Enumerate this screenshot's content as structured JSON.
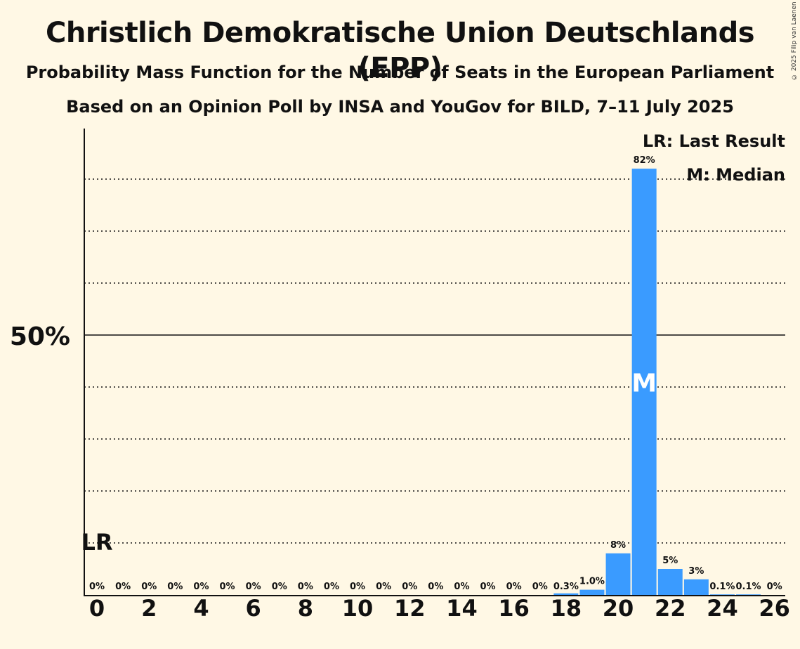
{
  "title": "Christlich Demokratische Union Deutschlands (EPP)",
  "subtitle1": "Probability Mass Function for the Number of Seats in the European Parliament",
  "subtitle2": "Based on an Opinion Poll by INSA and YouGov for BILD, 7–11 July 2025",
  "copyright": "© 2025 Filip van Laenen",
  "legend": {
    "last_result": "LR: Last Result",
    "median": "M: Median"
  },
  "colors": {
    "bar": "#3a9bff",
    "background": "#fff8e5",
    "text": "#111111"
  },
  "chart_data": {
    "type": "bar",
    "categories": [
      0,
      1,
      2,
      3,
      4,
      5,
      6,
      7,
      8,
      9,
      10,
      11,
      12,
      13,
      14,
      15,
      16,
      17,
      18,
      19,
      20,
      21,
      22,
      23,
      24,
      25,
      26
    ],
    "values": [
      0,
      0,
      0,
      0,
      0,
      0,
      0,
      0,
      0,
      0,
      0,
      0,
      0,
      0,
      0,
      0,
      0,
      0,
      0.3,
      1.0,
      8,
      82,
      5,
      3,
      0.1,
      0.1,
      0
    ],
    "value_labels": [
      "0%",
      "0%",
      "0%",
      "0%",
      "0%",
      "0%",
      "0%",
      "0%",
      "0%",
      "0%",
      "0%",
      "0%",
      "0%",
      "0%",
      "0%",
      "0%",
      "0%",
      "0%",
      "0.3%",
      "1.0%",
      "8%",
      "82%",
      "5%",
      "3%",
      "0.1%",
      "0.1%",
      "0%"
    ],
    "x_tick_labels": [
      "0",
      "2",
      "4",
      "6",
      "8",
      "10",
      "12",
      "14",
      "16",
      "18",
      "20",
      "22",
      "24",
      "26"
    ],
    "x_ticks": [
      0,
      2,
      4,
      6,
      8,
      10,
      12,
      14,
      16,
      18,
      20,
      22,
      24,
      26
    ],
    "y_tick_label": "50%",
    "y_tick_value": 50,
    "ylim": [
      0,
      90
    ],
    "gridlines": [
      10,
      20,
      30,
      40,
      60,
      70,
      80
    ],
    "last_result": {
      "seats": 0,
      "label": "LR"
    },
    "median": {
      "seats": 21,
      "label": "M"
    }
  }
}
